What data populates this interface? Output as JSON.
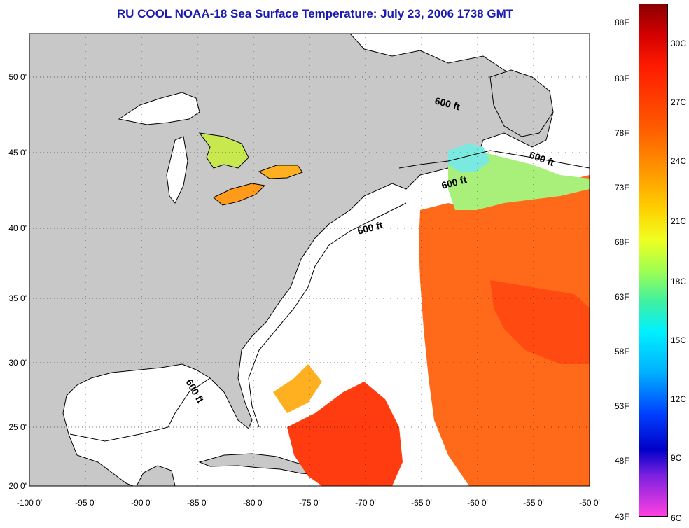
{
  "title": "RU COOL  NOAA-18  Sea Surface Temperature:  July 23, 2006 1738 GMT",
  "map": {
    "x_ticks": [
      "-100 0'",
      "-95 0'",
      "-90 0'",
      "-85 0'",
      "-80 0'",
      "-75 0'",
      "-70 0'",
      "-65 0'",
      "-60 0'",
      "-55 0'",
      "-50 0'"
    ],
    "y_ticks": [
      "50 0'",
      "45 0'",
      "40 0'",
      "35 0'",
      "30 0'",
      "25 0'",
      "20 0'"
    ],
    "lon_range": [
      -100,
      -50
    ],
    "lat_range": [
      20,
      52.5
    ],
    "isobath_label": "600 ft",
    "land_color": "#c8c8c8",
    "no_data_color": "#ffffff"
  },
  "colorbar": {
    "fahrenheit_labels": [
      "88F",
      "83F",
      "78F",
      "73F",
      "68F",
      "63F",
      "58F",
      "53F",
      "48F",
      "43F"
    ],
    "celsius_labels": [
      "30C",
      "27C",
      "24C",
      "21C",
      "18C",
      "15C",
      "12C",
      "9C",
      "6C"
    ],
    "range_c": [
      6,
      32
    ]
  }
}
